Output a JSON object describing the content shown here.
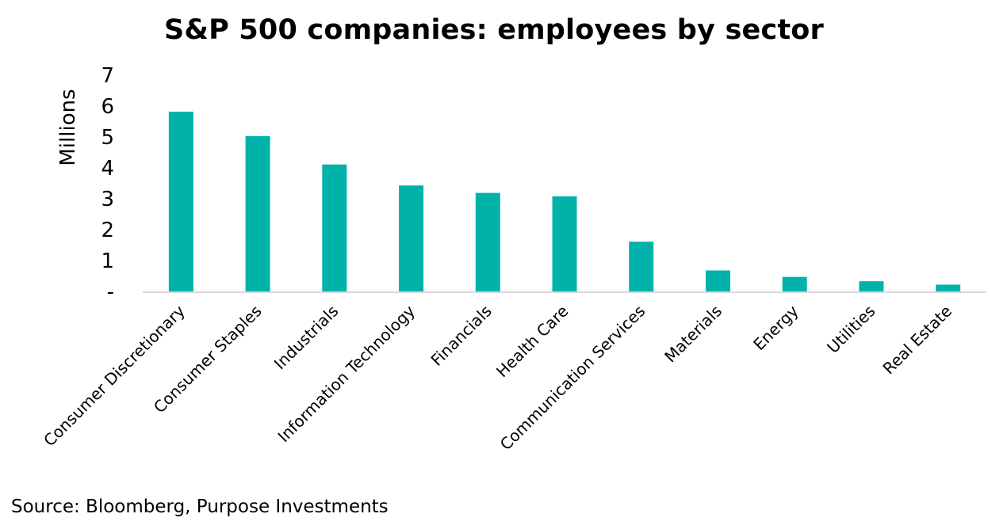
{
  "chart_data": {
    "type": "bar",
    "title": "S&P 500 companies: employees by sector",
    "ylabel": "Millions",
    "xlabel": "",
    "ylim": [
      0,
      7
    ],
    "yticks": [
      0,
      1,
      2,
      3,
      4,
      5,
      6,
      7
    ],
    "ytick_labels": [
      "-",
      "1",
      "2",
      "3",
      "4",
      "5",
      "6",
      "7"
    ],
    "grid": false,
    "legend": "none",
    "bar_color": "#00b2a9",
    "categories": [
      "Consumer Discretionary",
      "Consumer Staples",
      "Industrials",
      "Information Technology",
      "Financials",
      "Health Care",
      "Communication Services",
      "Materials",
      "Energy",
      "Utilities",
      "Real Estate"
    ],
    "values": [
      5.82,
      5.03,
      4.11,
      3.43,
      3.19,
      3.08,
      1.61,
      0.68,
      0.47,
      0.33,
      0.22
    ]
  },
  "footer": {
    "source": "Source: Bloomberg, Purpose Investments"
  }
}
